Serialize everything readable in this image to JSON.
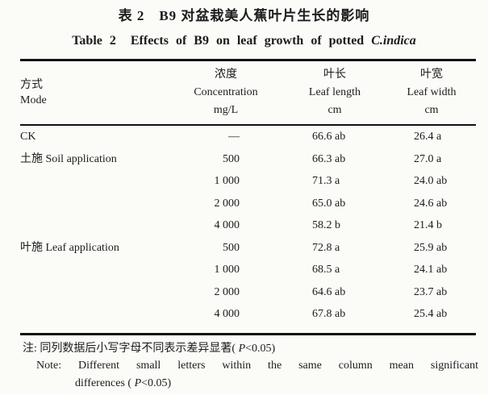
{
  "title": {
    "cn": "表 2　B9 对盆栽美人蕉叶片生长的影响",
    "en_prefix": "Table 2  Effects of B9 on leaf growth of potted ",
    "en_species": "C.indica"
  },
  "table": {
    "columns": [
      {
        "cn": "方式",
        "en": "Mode",
        "unit": ""
      },
      {
        "cn": "浓度",
        "en": "Concentration",
        "unit": "mg/L"
      },
      {
        "cn": "叶长",
        "en": "Leaf length",
        "unit": "cm"
      },
      {
        "cn": "叶宽",
        "en": "Leaf width",
        "unit": "cm"
      }
    ],
    "rows": [
      {
        "mode": "CK",
        "concentration": "—",
        "leaf_length": "66.6 ab",
        "leaf_width": "26.4 a"
      },
      {
        "mode": "土施 Soil application",
        "concentration": "500",
        "leaf_length": "66.3 ab",
        "leaf_width": "27.0 a"
      },
      {
        "mode": "",
        "concentration": "1 000",
        "leaf_length": "71.3 a",
        "leaf_width": "24.0 ab"
      },
      {
        "mode": "",
        "concentration": "2 000",
        "leaf_length": "65.0 ab",
        "leaf_width": "24.6 ab"
      },
      {
        "mode": "",
        "concentration": "4 000",
        "leaf_length": "58.2 b",
        "leaf_width": "21.4 b"
      },
      {
        "mode": "叶施 Leaf application",
        "concentration": "500",
        "leaf_length": "72.8 a",
        "leaf_width": "25.9 ab"
      },
      {
        "mode": "",
        "concentration": "1 000",
        "leaf_length": "68.5 a",
        "leaf_width": "24.1 ab"
      },
      {
        "mode": "",
        "concentration": "2 000",
        "leaf_length": "64.6 ab",
        "leaf_width": "23.7 ab"
      },
      {
        "mode": "",
        "concentration": "4 000",
        "leaf_length": "67.8 ab",
        "leaf_width": "25.4 ab"
      }
    ]
  },
  "notes": {
    "cn_prefix": "注: 同列数据后小写字母不同表示差异显著( ",
    "cn_p": "P",
    "cn_suffix": "<0.05)",
    "en_line1": "Note: Different small letters within the same column mean significant",
    "en_line2_prefix": "differences ( ",
    "en_line2_p": "P",
    "en_line2_suffix": "<0.05)"
  }
}
